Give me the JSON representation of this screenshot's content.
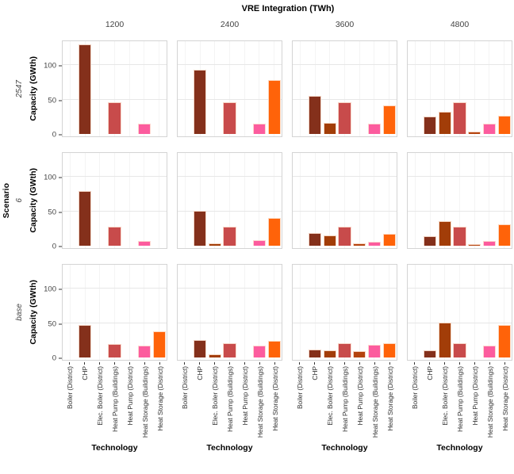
{
  "title": "VRE Integration (TWh)",
  "axes": {
    "row_title": "Scenario",
    "y_title": "Capacity (GWth)",
    "x_title": "Technology"
  },
  "chart_data": {
    "type": "bar",
    "title": "VRE Integration (TWh)",
    "xlabel": "Technology",
    "ylabel": "Capacity (GWth)",
    "facet_col_label": "VRE Integration (TWh)",
    "facet_col_values": [
      "1200",
      "2400",
      "3600",
      "4800"
    ],
    "facet_row_label": "Scenario",
    "facet_row_values": [
      "2547",
      "6",
      "base"
    ],
    "categories": [
      "Boiler (District)",
      "CHP",
      "Elec. Boiler (District)",
      "Heat Pump (Buildings)",
      "Heat Pump (District)",
      "Heat Storage (Buildings)",
      "Heat Storage (District)"
    ],
    "y_ticks": [
      0,
      50,
      100
    ],
    "ylim": [
      0,
      135
    ],
    "grid": true,
    "legend": "none",
    "colors": {
      "Boiler (District)": "#7B2713",
      "CHP": "#84301B",
      "Elec. Boiler (District)": "#A23D08",
      "Heat Pump (Buildings)": "#C84B4B",
      "Heat Pump (District)": "#B4430E",
      "Heat Storage (Buildings)": "#FC5C9E",
      "Heat Storage (District)": "#FF6309"
    },
    "values": {
      "2547": {
        "1200": [
          0,
          130,
          0,
          46,
          0,
          15,
          0
        ],
        "2400": [
          0,
          94,
          0,
          46,
          0,
          15,
          79
        ],
        "3600": [
          0,
          55,
          16,
          46,
          0,
          15,
          42
        ],
        "4800": [
          0,
          25,
          32,
          46,
          3,
          15,
          26
        ]
      },
      "6": {
        "1200": [
          0,
          80,
          0,
          28,
          0,
          7,
          0
        ],
        "2400": [
          0,
          51,
          3,
          28,
          0,
          8,
          40
        ],
        "3600": [
          0,
          19,
          15,
          28,
          3,
          6,
          17
        ],
        "4800": [
          0,
          14,
          36,
          28,
          2,
          7,
          31
        ]
      },
      "base": {
        "1200": [
          0,
          47,
          0,
          20,
          0,
          17,
          38
        ],
        "2400": [
          0,
          25,
          5,
          21,
          0,
          17,
          24
        ],
        "3600": [
          0,
          12,
          10,
          21,
          9,
          19,
          21
        ],
        "4800": [
          0,
          10,
          51,
          21,
          0,
          17,
          47
        ]
      }
    }
  }
}
